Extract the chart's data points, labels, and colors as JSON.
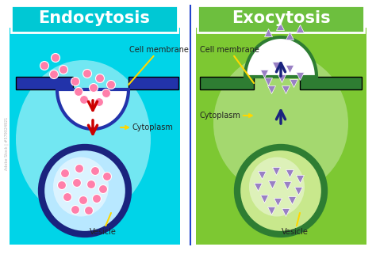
{
  "title_endo": "Endocytosis",
  "title_exo": "Exocytosis",
  "title_endo_bg": "#00C8D4",
  "title_exo_bg": "#6DBF3E",
  "bg_endo_light": "#00D4E8",
  "bg_endo_dark": "#0099BB",
  "bg_exo_light": "#7DC832",
  "bg_exo_dark": "#5A9E20",
  "membrane_color_endo": "#2233AA",
  "membrane_color_exo": "#2E7D32",
  "vesicle_outer_endo": "#1A237E",
  "vesicle_inner_endo": "#B8E8FF",
  "vesicle_outer_exo": "#2E7D32",
  "vesicle_inner_exo": "#C8E88C",
  "particle_color_endo": "#FF7FAA",
  "particle_color_exo": "#9980C4",
  "arrow_endo": "#CC0000",
  "arrow_exo": "#1A237E",
  "label_color": "#222222",
  "pointer_color": "#FFD700",
  "divider_color": "#2244CC",
  "watermark": "Adobe Stock | #579024921",
  "bg_outer": "#FFFFFF"
}
